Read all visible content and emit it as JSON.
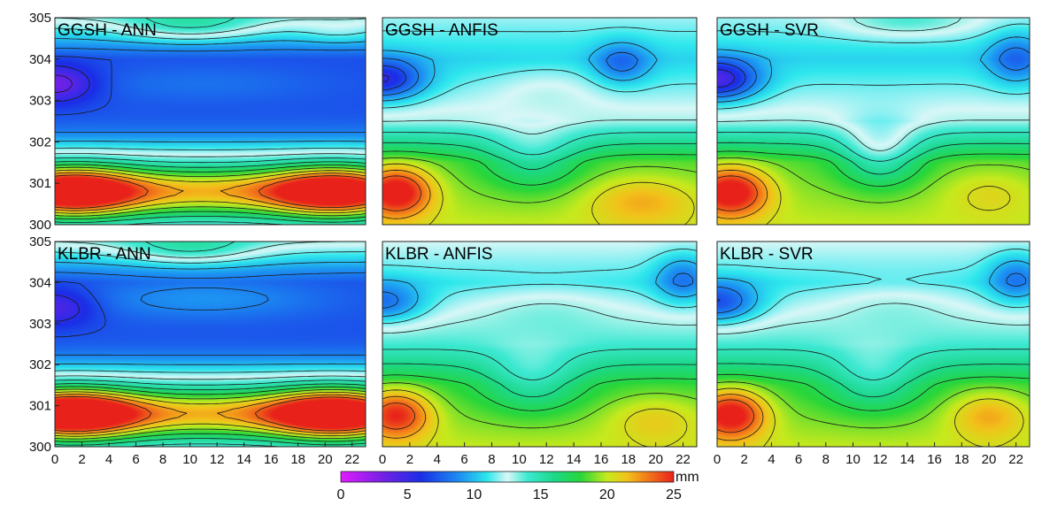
{
  "chart_data": {
    "type": "heatmap",
    "grid": false,
    "colorbar": {
      "range": [
        0,
        25
      ],
      "ticks": [
        "0",
        "5",
        "10",
        "15",
        "20",
        "25"
      ],
      "unit": "mm",
      "stops": [
        {
          "v": 0,
          "color": "#e11cff"
        },
        {
          "v": 3,
          "color": "#7a1fe6"
        },
        {
          "v": 6,
          "color": "#1a2ee6"
        },
        {
          "v": 9,
          "color": "#1c93f2"
        },
        {
          "v": 11,
          "color": "#2ee8ec"
        },
        {
          "v": 12.5,
          "color": "#d9f7f7"
        },
        {
          "v": 14,
          "color": "#3de9d2"
        },
        {
          "v": 16,
          "color": "#1cd88a"
        },
        {
          "v": 18,
          "color": "#27d63a"
        },
        {
          "v": 20,
          "color": "#c6ea1d"
        },
        {
          "v": 21.5,
          "color": "#f2c21a"
        },
        {
          "v": 23,
          "color": "#f27a1a"
        },
        {
          "v": 25,
          "color": "#e8221a"
        }
      ]
    },
    "x_range": [
      0,
      23
    ],
    "y_range": [
      300,
      305
    ],
    "y_ticks": [
      "300",
      "301",
      "302",
      "303",
      "304",
      "305"
    ],
    "x_ticks_first": [
      "0",
      "2",
      "4",
      "6",
      "8",
      "10",
      "12",
      "14",
      "16",
      "18",
      "20",
      "22"
    ],
    "x_ticks_rest": [
      "0",
      "2",
      "4",
      "6",
      "8",
      "10",
      "12",
      "14",
      "16",
      "18",
      "20",
      "22"
    ],
    "panels": [
      {
        "title": "GGSH - ANN",
        "model": "ANN",
        "base": [
          [
            3,
            5.0
          ],
          [
            4,
            10.0
          ],
          [
            5,
            13.0
          ]
        ],
        "bumps": [
          {
            "x": 1,
            "y": 300.8,
            "sx": 5.0,
            "sy": 0.6,
            "a": 11
          },
          {
            "x": 21,
            "y": 300.8,
            "sx": 5.0,
            "sy": 0.6,
            "a": 10
          },
          {
            "x": 11.5,
            "y": 300.8,
            "sx": 14,
            "sy": 0.6,
            "a": 7
          },
          {
            "x": 0,
            "y": 303.4,
            "sx": 3.0,
            "sy": 0.45,
            "a": -4
          },
          {
            "x": 11,
            "y": 303.4,
            "sx": 9,
            "sy": 0.45,
            "a": 1
          },
          {
            "x": 10,
            "y": 304.8,
            "sx": 5,
            "sy": 0.4,
            "a": 3
          },
          {
            "x": 21,
            "y": 304.6,
            "sx": 3,
            "sy": 0.3,
            "a": 1
          }
        ]
      },
      {
        "title": "GGSH - ANFIS",
        "model": "ANFIS",
        "base": [
          [
            0,
            20.0
          ],
          [
            1.5,
            18.5
          ],
          [
            2.5,
            13.0
          ],
          [
            4,
            10.5
          ],
          [
            5,
            12.0
          ]
        ],
        "bumps": [
          {
            "x": 1,
            "y": 300.8,
            "sx": 2.6,
            "sy": 0.6,
            "a": 7
          },
          {
            "x": 19,
            "y": 300.6,
            "sx": 4.0,
            "sy": 0.6,
            "a": 2.5
          },
          {
            "x": 11,
            "y": 301.6,
            "sx": 3.5,
            "sy": 0.8,
            "a": -3
          },
          {
            "x": 0,
            "y": 303.5,
            "sx": 3.0,
            "sy": 0.5,
            "a": -6
          },
          {
            "x": 17.5,
            "y": 303.9,
            "sx": 2.0,
            "sy": 0.5,
            "a": -3
          },
          {
            "x": 12,
            "y": 303.3,
            "sx": 4,
            "sy": 0.6,
            "a": 1
          }
        ]
      },
      {
        "title": "GGSH - SVR",
        "model": "SVR",
        "base": [
          [
            0,
            20.0
          ],
          [
            1.5,
            18.5
          ],
          [
            2.5,
            13.0
          ],
          [
            4,
            10.5
          ],
          [
            5,
            12.0
          ]
        ],
        "bumps": [
          {
            "x": 1,
            "y": 300.8,
            "sx": 2.8,
            "sy": 0.6,
            "a": 7
          },
          {
            "x": 20,
            "y": 300.8,
            "sx": 3.5,
            "sy": 0.6,
            "a": 1.5
          },
          {
            "x": 12,
            "y": 301.7,
            "sx": 3.0,
            "sy": 0.8,
            "a": -4
          },
          {
            "x": 0,
            "y": 303.5,
            "sx": 3.0,
            "sy": 0.5,
            "a": -7
          },
          {
            "x": 22,
            "y": 304.0,
            "sx": 2.0,
            "sy": 0.6,
            "a": -3
          },
          {
            "x": 14,
            "y": 304.9,
            "sx": 5,
            "sy": 0.4,
            "a": 2
          }
        ]
      },
      {
        "title": "KLBR - ANN",
        "model": "ANN",
        "base": [
          [
            3,
            5.0
          ],
          [
            4,
            10.0
          ],
          [
            5,
            13.0
          ]
        ],
        "bumps": [
          {
            "x": 1,
            "y": 300.8,
            "sx": 5.0,
            "sy": 0.6,
            "a": 12
          },
          {
            "x": 21,
            "y": 300.8,
            "sx": 5.0,
            "sy": 0.6,
            "a": 11
          },
          {
            "x": 11.5,
            "y": 300.8,
            "sx": 14,
            "sy": 0.6,
            "a": 7
          },
          {
            "x": 0,
            "y": 303.4,
            "sx": 3.0,
            "sy": 0.45,
            "a": -3
          },
          {
            "x": 11,
            "y": 303.6,
            "sx": 9,
            "sy": 0.5,
            "a": 2
          },
          {
            "x": 10,
            "y": 304.8,
            "sx": 5,
            "sy": 0.4,
            "a": 3
          }
        ]
      },
      {
        "title": "KLBR - ANFIS",
        "model": "ANFIS",
        "base": [
          [
            0,
            20.0
          ],
          [
            1.5,
            18.0
          ],
          [
            2.5,
            14.0
          ],
          [
            4,
            11.0
          ],
          [
            5,
            12.5
          ]
        ],
        "bumps": [
          {
            "x": 1,
            "y": 300.8,
            "sx": 2.6,
            "sy": 0.6,
            "a": 6
          },
          {
            "x": 20,
            "y": 300.7,
            "sx": 3.5,
            "sy": 0.6,
            "a": 2
          },
          {
            "x": 11,
            "y": 301.6,
            "sx": 3.5,
            "sy": 0.8,
            "a": -3
          },
          {
            "x": 0,
            "y": 303.5,
            "sx": 3.0,
            "sy": 0.5,
            "a": -4
          },
          {
            "x": 22,
            "y": 304.1,
            "sx": 2.0,
            "sy": 0.6,
            "a": -3
          },
          {
            "x": 12,
            "y": 303.4,
            "sx": 5,
            "sy": 0.6,
            "a": 1
          }
        ]
      },
      {
        "title": "KLBR - SVR",
        "model": "SVR",
        "base": [
          [
            0,
            20.0
          ],
          [
            1.5,
            18.0
          ],
          [
            2.5,
            14.0
          ],
          [
            4,
            11.0
          ],
          [
            5,
            12.5
          ]
        ],
        "bumps": [
          {
            "x": 1,
            "y": 300.8,
            "sx": 2.6,
            "sy": 0.6,
            "a": 7
          },
          {
            "x": 20,
            "y": 300.8,
            "sx": 3.0,
            "sy": 0.6,
            "a": 3
          },
          {
            "x": 11.5,
            "y": 301.6,
            "sx": 3.5,
            "sy": 0.8,
            "a": -3
          },
          {
            "x": 0,
            "y": 303.5,
            "sx": 3.0,
            "sy": 0.5,
            "a": -5
          },
          {
            "x": 22,
            "y": 304.1,
            "sx": 2.0,
            "sy": 0.6,
            "a": -3
          },
          {
            "x": 13,
            "y": 303.5,
            "sx": 5,
            "sy": 0.6,
            "a": 1
          }
        ]
      }
    ]
  }
}
